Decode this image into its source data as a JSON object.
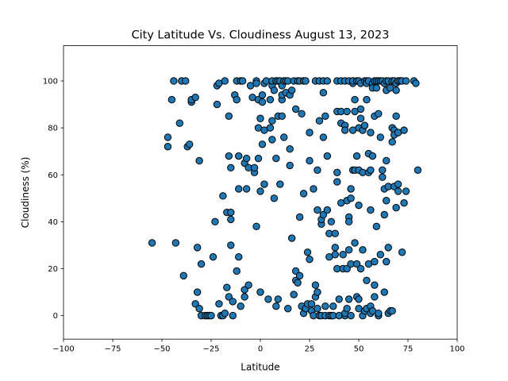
{
  "chart_data": {
    "type": "scatter",
    "title": "City Latitude Vs. Cloudiness August 13, 2023",
    "xlabel": "Latitude",
    "ylabel": "Cloudiness (%)",
    "xlim": [
      -100,
      100
    ],
    "ylim": [
      -10,
      115
    ],
    "xticks": [
      -100,
      -75,
      -50,
      -25,
      0,
      25,
      50,
      75,
      100
    ],
    "yticks": [
      0,
      20,
      40,
      60,
      80,
      100
    ],
    "grid": false,
    "legend": "none",
    "marker_color": "#1f77b4",
    "marker_edge_color": "#000000",
    "points": [
      [
        -55,
        31
      ],
      [
        -47,
        76
      ],
      [
        -47,
        72
      ],
      [
        -45,
        92
      ],
      [
        -44,
        100
      ],
      [
        -43,
        31
      ],
      [
        -41,
        82
      ],
      [
        -40,
        100
      ],
      [
        -39,
        17
      ],
      [
        -38,
        100
      ],
      [
        -37,
        72
      ],
      [
        -36,
        73
      ],
      [
        -35,
        91
      ],
      [
        -35,
        92
      ],
      [
        -33,
        93
      ],
      [
        -33,
        5
      ],
      [
        -32,
        29
      ],
      [
        -32,
        10
      ],
      [
        -31,
        3
      ],
      [
        -31,
        66
      ],
      [
        -30,
        0
      ],
      [
        -30,
        22
      ],
      [
        -28,
        0
      ],
      [
        -27,
        0
      ],
      [
        -26,
        0
      ],
      [
        -25,
        0
      ],
      [
        -24,
        25
      ],
      [
        -23,
        40
      ],
      [
        -22,
        90
      ],
      [
        -22,
        98
      ],
      [
        -21,
        5
      ],
      [
        -21,
        99
      ],
      [
        -20,
        0
      ],
      [
        -19,
        51
      ],
      [
        -19,
        0
      ],
      [
        -18,
        100
      ],
      [
        -18,
        1
      ],
      [
        -17,
        12
      ],
      [
        -17,
        44
      ],
      [
        -16,
        8
      ],
      [
        -16,
        85
      ],
      [
        -16,
        68
      ],
      [
        -15,
        30
      ],
      [
        -15,
        41
      ],
      [
        -15,
        44
      ],
      [
        -15,
        63
      ],
      [
        -14,
        6
      ],
      [
        -14,
        0
      ],
      [
        -13,
        94
      ],
      [
        -12,
        92
      ],
      [
        -12,
        100
      ],
      [
        -12,
        19
      ],
      [
        -11,
        54
      ],
      [
        -11,
        68
      ],
      [
        -11,
        25
      ],
      [
        -10,
        100
      ],
      [
        -10,
        4
      ],
      [
        -9,
        100
      ],
      [
        -8,
        65
      ],
      [
        -8,
        8
      ],
      [
        -8,
        11
      ],
      [
        -7,
        67
      ],
      [
        -7,
        54
      ],
      [
        -6,
        63
      ],
      [
        -6,
        13
      ],
      [
        -5,
        98
      ],
      [
        -4,
        93
      ],
      [
        -3,
        61
      ],
      [
        -3,
        63
      ],
      [
        -2,
        100
      ],
      [
        -2,
        99
      ],
      [
        -2,
        38
      ],
      [
        -1,
        67
      ],
      [
        -1,
        80
      ],
      [
        -1,
        92
      ],
      [
        0,
        53
      ],
      [
        0,
        84
      ],
      [
        0,
        10
      ],
      [
        1,
        73
      ],
      [
        1,
        91
      ],
      [
        1,
        94
      ],
      [
        2,
        56
      ],
      [
        2,
        79
      ],
      [
        2,
        99
      ],
      [
        3,
        100
      ],
      [
        4,
        7
      ],
      [
        5,
        80
      ],
      [
        5,
        92
      ],
      [
        6,
        98
      ],
      [
        6,
        83
      ],
      [
        6,
        75
      ],
      [
        6,
        100
      ],
      [
        7,
        50
      ],
      [
        7,
        96
      ],
      [
        8,
        100
      ],
      [
        8,
        67
      ],
      [
        8,
        4
      ],
      [
        9,
        85
      ],
      [
        9,
        7
      ],
      [
        9,
        100
      ],
      [
        10,
        56
      ],
      [
        10,
        100
      ],
      [
        11,
        92
      ],
      [
        11,
        98
      ],
      [
        11,
        85
      ],
      [
        11,
        94
      ],
      [
        12,
        100
      ],
      [
        12,
        76
      ],
      [
        13,
        100
      ],
      [
        13,
        95
      ],
      [
        14,
        100
      ],
      [
        14,
        3
      ],
      [
        15,
        71
      ],
      [
        15,
        64
      ],
      [
        15,
        94
      ],
      [
        16,
        33
      ],
      [
        16,
        96
      ],
      [
        17,
        9
      ],
      [
        17,
        100
      ],
      [
        18,
        15
      ],
      [
        18,
        88
      ],
      [
        18,
        19
      ],
      [
        19,
        100
      ],
      [
        19,
        14
      ],
      [
        20,
        42
      ],
      [
        20,
        17
      ],
      [
        20,
        100
      ],
      [
        21,
        86
      ],
      [
        21,
        4
      ],
      [
        22,
        1
      ],
      [
        22,
        100
      ],
      [
        22,
        52
      ],
      [
        23,
        100
      ],
      [
        23,
        3
      ],
      [
        24,
        5
      ],
      [
        24,
        27
      ],
      [
        25,
        78
      ],
      [
        25,
        24
      ],
      [
        25,
        66
      ],
      [
        26,
        2
      ],
      [
        26,
        5
      ],
      [
        27,
        54
      ],
      [
        27,
        0
      ],
      [
        28,
        100
      ],
      [
        28,
        13
      ],
      [
        28,
        8
      ],
      [
        29,
        10
      ],
      [
        29,
        3
      ],
      [
        29,
        45
      ],
      [
        29,
        62
      ],
      [
        30,
        83
      ],
      [
        30,
        100
      ],
      [
        30,
        0
      ],
      [
        31,
        0
      ],
      [
        31,
        39
      ],
      [
        31,
        41
      ],
      [
        32,
        100
      ],
      [
        32,
        95
      ],
      [
        32,
        43
      ],
      [
        32,
        76
      ],
      [
        33,
        4
      ],
      [
        33,
        85
      ],
      [
        33,
        0
      ],
      [
        34,
        100
      ],
      [
        34,
        45
      ],
      [
        34,
        68
      ],
      [
        35,
        0
      ],
      [
        35,
        35
      ],
      [
        35,
        25
      ],
      [
        36,
        40
      ],
      [
        36,
        0
      ],
      [
        37,
        0
      ],
      [
        37,
        4
      ],
      [
        38,
        29
      ],
      [
        38,
        35
      ],
      [
        38,
        26
      ],
      [
        39,
        100
      ],
      [
        39,
        57
      ],
      [
        39,
        61
      ],
      [
        39,
        87
      ],
      [
        39,
        20
      ],
      [
        40,
        7
      ],
      [
        40,
        0
      ],
      [
        41,
        100
      ],
      [
        41,
        48
      ],
      [
        41,
        87
      ],
      [
        41,
        82
      ],
      [
        42,
        20
      ],
      [
        42,
        26
      ],
      [
        43,
        0
      ],
      [
        43,
        1
      ],
      [
        43,
        100
      ],
      [
        43,
        81
      ],
      [
        43,
        79
      ],
      [
        44,
        49
      ],
      [
        44,
        20
      ],
      [
        44,
        3
      ],
      [
        44,
        87
      ],
      [
        45,
        100
      ],
      [
        45,
        42
      ],
      [
        45,
        7
      ],
      [
        45,
        28
      ],
      [
        45,
        40
      ],
      [
        46,
        54
      ],
      [
        46,
        50
      ],
      [
        46,
        22
      ],
      [
        46,
        0
      ],
      [
        47,
        100
      ],
      [
        47,
        62
      ],
      [
        47,
        79
      ],
      [
        47,
        99
      ],
      [
        47,
        100
      ],
      [
        48,
        31
      ],
      [
        48,
        92
      ],
      [
        48,
        87
      ],
      [
        48,
        62
      ],
      [
        49,
        8
      ],
      [
        49,
        68
      ],
      [
        49,
        22
      ],
      [
        49,
        100
      ],
      [
        50,
        100
      ],
      [
        50,
        62
      ],
      [
        50,
        80
      ],
      [
        50,
        47
      ],
      [
        50,
        3
      ],
      [
        50,
        7
      ],
      [
        51,
        88
      ],
      [
        51,
        99
      ],
      [
        51,
        84
      ],
      [
        51,
        20
      ],
      [
        52,
        0
      ],
      [
        52,
        28
      ],
      [
        52,
        79
      ],
      [
        52,
        61
      ],
      [
        53,
        81
      ],
      [
        53,
        100
      ],
      [
        53,
        2
      ],
      [
        54,
        100
      ],
      [
        54,
        92
      ],
      [
        54,
        99
      ],
      [
        54,
        15
      ],
      [
        54,
        3
      ],
      [
        55,
        100
      ],
      [
        55,
        69
      ],
      [
        55,
        22
      ],
      [
        55,
        61
      ],
      [
        56,
        4
      ],
      [
        56,
        62
      ],
      [
        56,
        78
      ],
      [
        56,
        45
      ],
      [
        56,
        1
      ],
      [
        57,
        99
      ],
      [
        57,
        97
      ],
      [
        57,
        68
      ],
      [
        57,
        2
      ],
      [
        58,
        100
      ],
      [
        58,
        85
      ],
      [
        58,
        13
      ],
      [
        58,
        8
      ],
      [
        58,
        23
      ],
      [
        59,
        100
      ],
      [
        59,
        97
      ],
      [
        59,
        38
      ],
      [
        60,
        100
      ],
      [
        60,
        86
      ],
      [
        60,
        0
      ],
      [
        60,
        1
      ],
      [
        61,
        100
      ],
      [
        61,
        76
      ],
      [
        61,
        26
      ],
      [
        62,
        100
      ],
      [
        62,
        62
      ],
      [
        62,
        59
      ],
      [
        63,
        99
      ],
      [
        63,
        54
      ],
      [
        63,
        43
      ],
      [
        63,
        10
      ],
      [
        64,
        100
      ],
      [
        64,
        96
      ],
      [
        64,
        66
      ],
      [
        64,
        49
      ],
      [
        64,
        23
      ],
      [
        65,
        100
      ],
      [
        65,
        55
      ],
      [
        65,
        29
      ],
      [
        65,
        1
      ],
      [
        66,
        97
      ],
      [
        66,
        2
      ],
      [
        67,
        100
      ],
      [
        67,
        74
      ],
      [
        67,
        80
      ],
      [
        67,
        2
      ],
      [
        68,
        100
      ],
      [
        68,
        79
      ],
      [
        68,
        77
      ],
      [
        68,
        55
      ],
      [
        69,
        99
      ],
      [
        69,
        96
      ],
      [
        69,
        85
      ],
      [
        69,
        46
      ],
      [
        70,
        100
      ],
      [
        70,
        78
      ],
      [
        70,
        56
      ],
      [
        70,
        53
      ],
      [
        71,
        100
      ],
      [
        71,
        100
      ],
      [
        72,
        100
      ],
      [
        72,
        27
      ],
      [
        73,
        79
      ],
      [
        73,
        48
      ],
      [
        74,
        53
      ],
      [
        74,
        100
      ],
      [
        78,
        100
      ],
      [
        79,
        99
      ],
      [
        80,
        62
      ]
    ]
  }
}
